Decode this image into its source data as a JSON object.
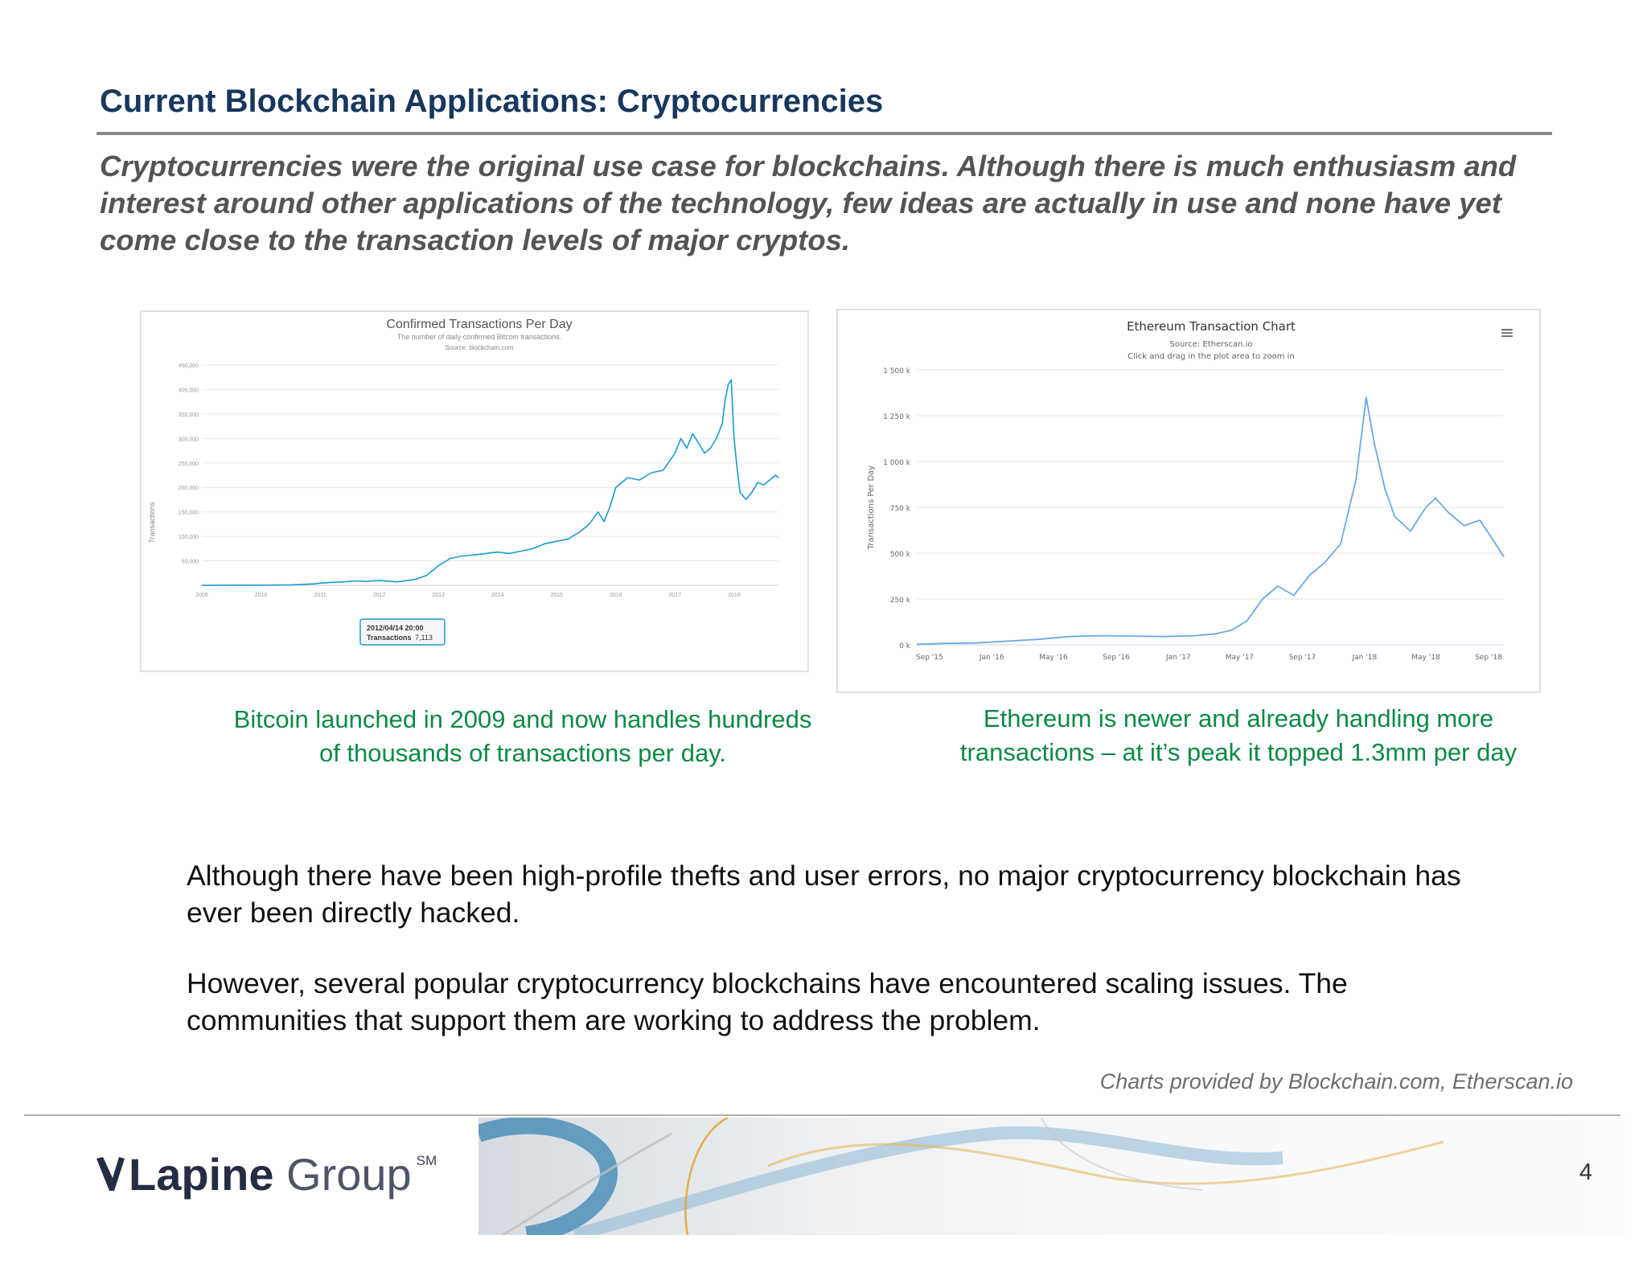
{
  "slide": {
    "title": "Current Blockchain Applications: Cryptocurrencies",
    "subtitle": "Cryptocurrencies were the original use case for blockchains.  Although there is much enthusiasm and interest around other applications of the technology, few ideas are actually in use and none have yet come close to the transaction levels of major cryptos.",
    "btc_caption": "Bitcoin launched in 2009 and now handles hundreds of thousands of transactions per day.",
    "eth_caption": "Ethereum is newer and already handling more transactions – at it’s peak it topped 1.3mm per day",
    "paragraph_1": "Although there have been high-profile thefts and user errors, no major cryptocurrency blockchain has ever been directly hacked.",
    "paragraph_2": "However, several popular cryptocurrency blockchains have encountered scaling issues. The communities that support them are working to address the problem.",
    "credits": "Charts provided by Blockchain.com, Etherscan.io",
    "page_number": "4"
  },
  "footer": {
    "logo_primary": "Lapine",
    "logo_secondary": " Group",
    "logo_mark": "SM"
  },
  "colors": {
    "title": "#17375e",
    "caption_green": "#0d8a46",
    "btc_line": "#1a9bd0",
    "eth_line": "#6aaae3"
  },
  "chart_data": [
    {
      "type": "line",
      "title": "Confirmed Transactions Per Day",
      "subtitle": "The number of daily confirmed Bitcoin transactions.",
      "source": "Source: blockchain.com",
      "xlabel": "",
      "ylabel": "Transactions",
      "xlim": [
        2009.0,
        2018.75
      ],
      "ylim": [
        0,
        450000
      ],
      "y_ticks": [
        50000,
        100000,
        150000,
        200000,
        250000,
        300000,
        350000,
        400000,
        450000
      ],
      "y_tick_labels": [
        "50,000",
        "100,000",
        "150,000",
        "200,000",
        "250,000",
        "300,000",
        "350,000",
        "400,000",
        "450,000"
      ],
      "x_ticks": [
        2009,
        2010,
        2011,
        2012,
        2013,
        2014,
        2015,
        2016,
        2017,
        2018
      ],
      "x_tick_labels": [
        "2009",
        "2010",
        "2011",
        "2012",
        "2013",
        "2014",
        "2015",
        "2016",
        "2017",
        "2018"
      ],
      "grid": true,
      "tooltip": {
        "x": 2012.29,
        "y": 7113,
        "date": "2012/04/14 20:00",
        "label": "Transactions",
        "value": "7,113"
      },
      "series": [
        {
          "x": [
            2009.0,
            2009.5,
            2010.0,
            2010.5,
            2010.9,
            2011.0,
            2011.2,
            2011.4,
            2011.6,
            2011.8,
            2012.0,
            2012.3,
            2012.6,
            2012.8,
            2013.0,
            2013.2,
            2013.4,
            2013.6,
            2013.8,
            2014.0,
            2014.2,
            2014.4,
            2014.6,
            2014.8,
            2015.0,
            2015.2,
            2015.4,
            2015.55,
            2015.7,
            2015.8,
            2015.9,
            2016.0,
            2016.2,
            2016.4,
            2016.6,
            2016.8,
            2017.0,
            2017.1,
            2017.2,
            2017.3,
            2017.4,
            2017.5,
            2017.6,
            2017.7,
            2017.8,
            2017.85,
            2017.9,
            2017.95,
            2018.0,
            2018.05,
            2018.1,
            2018.2,
            2018.3,
            2018.4,
            2018.5,
            2018.6,
            2018.7,
            2018.75
          ],
          "values": [
            100,
            300,
            400,
            1000,
            3000,
            4500,
            6000,
            7000,
            9000,
            8000,
            10000,
            7113,
            12000,
            20000,
            40000,
            55000,
            60000,
            62000,
            65000,
            68000,
            65000,
            70000,
            75000,
            85000,
            90000,
            95000,
            110000,
            125000,
            150000,
            130000,
            160000,
            200000,
            220000,
            215000,
            230000,
            235000,
            270000,
            300000,
            280000,
            310000,
            290000,
            270000,
            280000,
            300000,
            330000,
            380000,
            410000,
            420000,
            300000,
            240000,
            190000,
            175000,
            190000,
            210000,
            205000,
            215000,
            225000,
            220000
          ]
        }
      ]
    },
    {
      "type": "line",
      "title": "Ethereum Transaction Chart",
      "subtitle": "Source: Etherscan.io",
      "subtitle_2": "Click and drag in the plot area to zoom in",
      "menu_glyph": "≡",
      "xlabel": "",
      "ylabel": "Transactions Per Day",
      "x_ticks": [
        "2015-09",
        "2016-01",
        "2016-05",
        "2016-09",
        "2017-01",
        "2017-05",
        "2017-09",
        "2018-01",
        "2018-05",
        "2018-09"
      ],
      "x_tick_labels": [
        "Sep '15",
        "Jan '16",
        "May '16",
        "Sep '16",
        "Jan '17",
        "May '17",
        "Sep '17",
        "Jan '18",
        "May '18",
        "Sep '18"
      ],
      "y_ticks": [
        0,
        250000,
        500000,
        750000,
        1000000,
        1250000,
        1500000
      ],
      "y_tick_labels": [
        "0 k",
        "250 k",
        "500 k",
        "750 k",
        "1 000 k",
        "1 250 k",
        "1 500 k"
      ],
      "ylim": [
        0,
        1500000
      ],
      "xlim": [
        "2015-08-07",
        "2018-10-01"
      ],
      "grid": true,
      "series": [
        {
          "x": [
            "2015-08-07",
            "2015-10-01",
            "2015-12-01",
            "2016-02-01",
            "2016-04-01",
            "2016-06-01",
            "2016-08-01",
            "2016-10-01",
            "2016-12-01",
            "2017-02-01",
            "2017-03-15",
            "2017-04-15",
            "2017-05-15",
            "2017-06-15",
            "2017-07-15",
            "2017-08-15",
            "2017-09-15",
            "2017-10-15",
            "2017-11-15",
            "2017-12-15",
            "2018-01-04",
            "2018-01-20",
            "2018-02-10",
            "2018-03-01",
            "2018-04-01",
            "2018-05-01",
            "2018-05-20",
            "2018-06-15",
            "2018-07-15",
            "2018-08-15",
            "2018-09-15",
            "2018-10-01"
          ],
          "values": [
            3000,
            8000,
            10000,
            20000,
            30000,
            45000,
            50000,
            48000,
            45000,
            50000,
            60000,
            80000,
            130000,
            250000,
            320000,
            270000,
            380000,
            450000,
            550000,
            900000,
            1350000,
            1100000,
            850000,
            700000,
            620000,
            750000,
            800000,
            720000,
            650000,
            680000,
            550000,
            480000
          ]
        }
      ]
    }
  ]
}
